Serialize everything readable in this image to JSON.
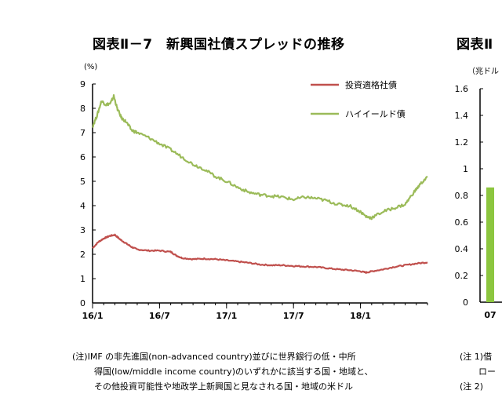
{
  "left_chart": {
    "title": "図表Ⅱ－7　新興国社債スプレッドの推移",
    "unit": "(%)",
    "legend": [
      "投資適格社債",
      "ハイイールド債"
    ]
  },
  "right_chart": {
    "title": "図表Ⅱ",
    "unit": "（兆ドル",
    "x_tick": "07"
  },
  "notes": {
    "left": [
      "(注)IMF の非先進国(non-advanced country)並びに世界銀行の低・中所",
      "得国(low/middle income country)のいずれかに該当する国・地域と、",
      "その他投資可能性や地政学上新興国と見なされる国・地域の米ドル"
    ],
    "right": [
      "(注 1)借",
      "ロー",
      "(注 2)"
    ]
  },
  "colors": {
    "investment_grade": "#c0504d",
    "high_yield": "#9bbb59",
    "bar": "#8cc63f"
  },
  "chart_data": [
    {
      "type": "line",
      "title": "図表Ⅱ－7　新興国社債スプレッドの推移",
      "ylabel": "(%)",
      "ylim": [
        0,
        9
      ],
      "yticks": [
        0,
        1,
        2,
        3,
        4,
        5,
        6,
        7,
        8,
        9
      ],
      "x_ticks": [
        "16/1",
        "16/7",
        "17/1",
        "17/7",
        "18/1"
      ],
      "xlim_months": [
        0,
        30
      ],
      "series": [
        {
          "name": "投資適格社債",
          "color": "#c0504d",
          "points": [
            [
              0,
              2.25
            ],
            [
              0.5,
              2.5
            ],
            [
              1,
              2.65
            ],
            [
              1.5,
              2.75
            ],
            [
              2,
              2.8
            ],
            [
              2.5,
              2.6
            ],
            [
              3,
              2.45
            ],
            [
              3.5,
              2.3
            ],
            [
              4,
              2.2
            ],
            [
              5,
              2.15
            ],
            [
              6,
              2.15
            ],
            [
              7,
              2.1
            ],
            [
              7.5,
              1.95
            ],
            [
              8,
              1.85
            ],
            [
              9,
              1.8
            ],
            [
              10,
              1.82
            ],
            [
              11,
              1.8
            ],
            [
              12,
              1.75
            ],
            [
              13,
              1.7
            ],
            [
              14,
              1.65
            ],
            [
              15,
              1.58
            ],
            [
              16,
              1.55
            ],
            [
              17,
              1.55
            ],
            [
              18,
              1.52
            ],
            [
              19,
              1.5
            ],
            [
              20,
              1.48
            ],
            [
              21,
              1.43
            ],
            [
              22,
              1.38
            ],
            [
              23,
              1.35
            ],
            [
              24,
              1.3
            ],
            [
              24.5,
              1.25
            ],
            [
              25,
              1.3
            ],
            [
              26,
              1.38
            ],
            [
              27,
              1.48
            ],
            [
              28,
              1.55
            ],
            [
              29,
              1.62
            ],
            [
              30,
              1.67
            ]
          ]
        },
        {
          "name": "ハイイールド債",
          "color": "#9bbb59",
          "points": [
            [
              0,
              7.25
            ],
            [
              0.4,
              7.7
            ],
            [
              0.8,
              8.3
            ],
            [
              1.2,
              8.15
            ],
            [
              1.6,
              8.2
            ],
            [
              1.9,
              8.5
            ],
            [
              2.2,
              8.0
            ],
            [
              2.6,
              7.6
            ],
            [
              3,
              7.45
            ],
            [
              3.5,
              7.1
            ],
            [
              4,
              7.0
            ],
            [
              5,
              6.8
            ],
            [
              6,
              6.55
            ],
            [
              7,
              6.3
            ],
            [
              8,
              6.0
            ],
            [
              9,
              5.7
            ],
            [
              10,
              5.5
            ],
            [
              11,
              5.2
            ],
            [
              12,
              5.0
            ],
            [
              13,
              4.75
            ],
            [
              14,
              4.55
            ],
            [
              15,
              4.45
            ],
            [
              16,
              4.4
            ],
            [
              17,
              4.35
            ],
            [
              18,
              4.25
            ],
            [
              19,
              4.35
            ],
            [
              20,
              4.3
            ],
            [
              21,
              4.2
            ],
            [
              22,
              4.05
            ],
            [
              23,
              4.0
            ],
            [
              24,
              3.75
            ],
            [
              24.5,
              3.55
            ],
            [
              25,
              3.5
            ],
            [
              26,
              3.75
            ],
            [
              27,
              3.9
            ],
            [
              28,
              4.05
            ],
            [
              28.7,
              4.5
            ],
            [
              29.3,
              4.85
            ],
            [
              30,
              5.2
            ]
          ]
        }
      ]
    },
    {
      "type": "bar",
      "title": "図表Ⅱ",
      "ylabel": "（兆ドル",
      "ylim": [
        0,
        1.6
      ],
      "yticks": [
        0,
        0.2,
        0.4,
        0.6,
        0.8,
        1,
        1.2,
        1.4,
        1.6
      ],
      "categories": [
        "07"
      ],
      "values": [
        0.86
      ]
    }
  ]
}
